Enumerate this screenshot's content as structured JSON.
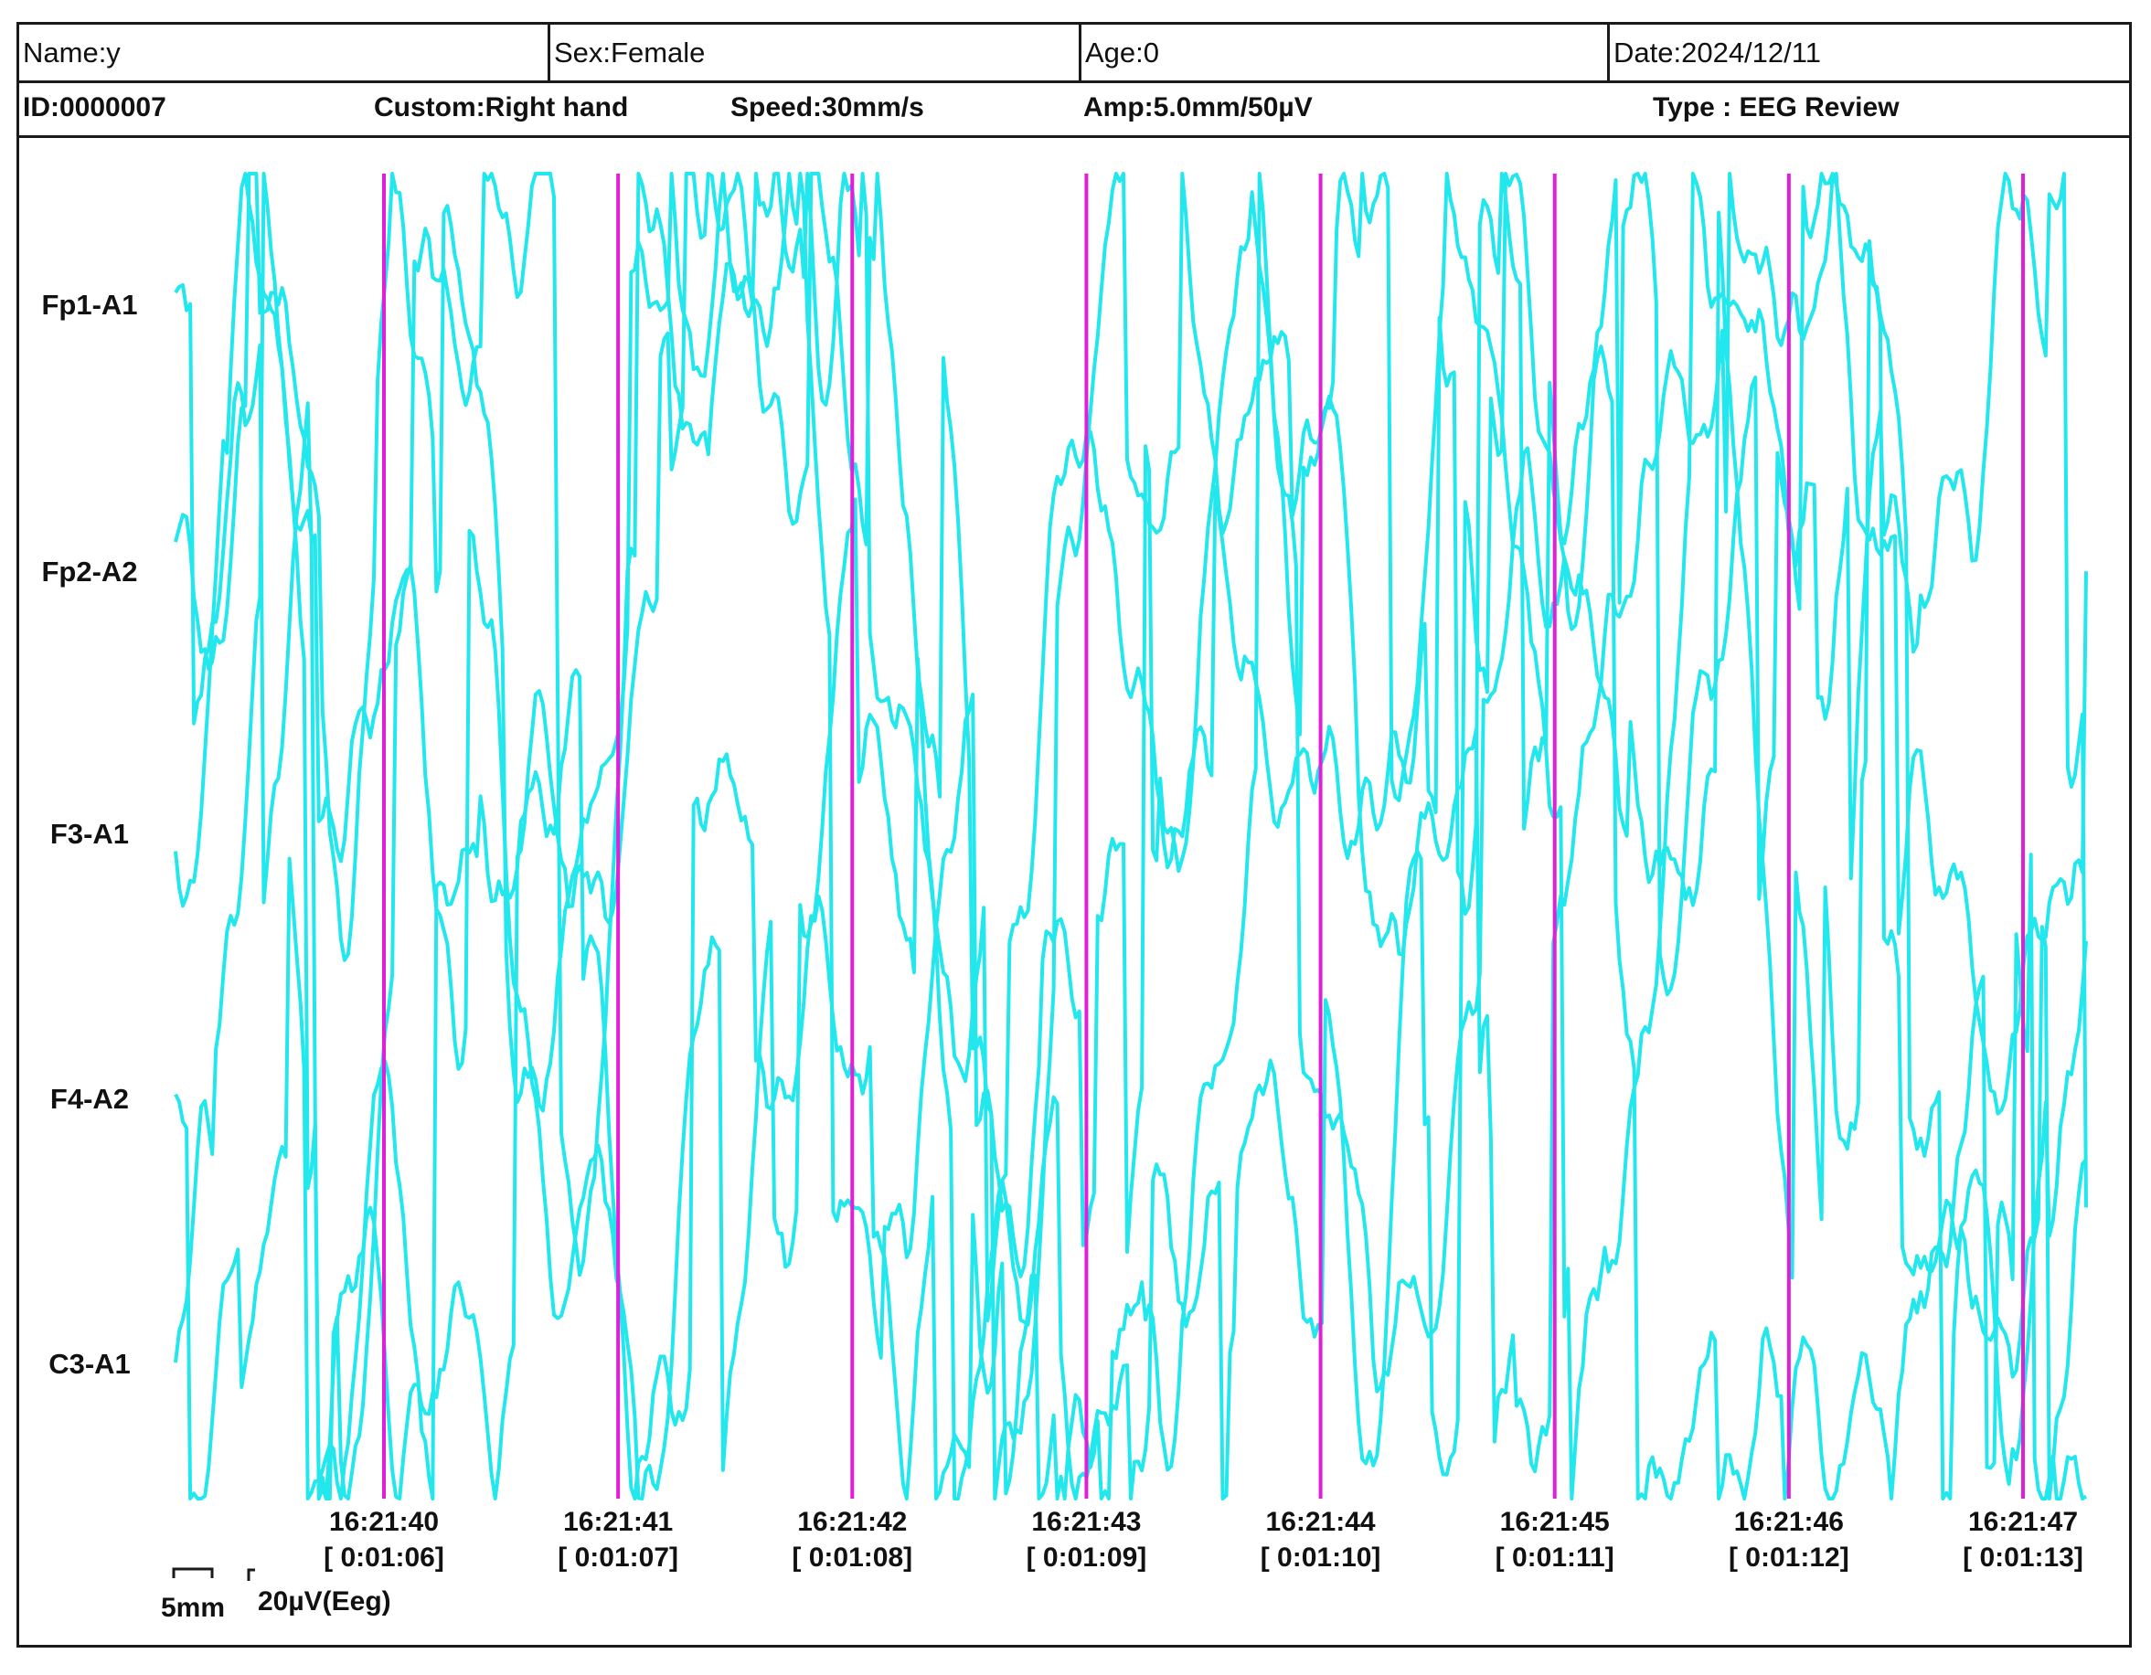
{
  "header": {
    "name": "Name:y",
    "sex": "Sex:Female",
    "age": "Age:0",
    "date": "Date:2024/12/11",
    "id": "ID:0000007",
    "custom": "Custom:Right hand",
    "speed": "Speed:30mm/s",
    "amp": "Amp:5.0mm/50µV",
    "type": "Type : EEG Review"
  },
  "scale_bar": {
    "time_label": "5mm",
    "amp_label": "20µV(Eeg)"
  },
  "colors": {
    "trace": "#22e8ee",
    "marker": "#e020d8",
    "border": "#1a1a1a"
  },
  "chart_data": {
    "type": "line",
    "channels": [
      "Fp1-A1",
      "Fp2-A2",
      "F3-A1",
      "F4-A2",
      "C3-A1"
    ],
    "time_ticks": [
      {
        "clock": "16:21:40",
        "elapsed": "[ 0:01:06]"
      },
      {
        "clock": "16:21:41",
        "elapsed": "[ 0:01:07]"
      },
      {
        "clock": "16:21:42",
        "elapsed": "[ 0:01:08]"
      },
      {
        "clock": "16:21:43",
        "elapsed": "[ 0:01:09]"
      },
      {
        "clock": "16:21:44",
        "elapsed": "[ 0:01:10]"
      },
      {
        "clock": "16:21:45",
        "elapsed": "[ 0:01:11]"
      },
      {
        "clock": "16:21:46",
        "elapsed": "[ 0:01:12]"
      },
      {
        "clock": "16:21:47",
        "elapsed": "[ 0:01:13]"
      }
    ],
    "legend": "none"
  }
}
